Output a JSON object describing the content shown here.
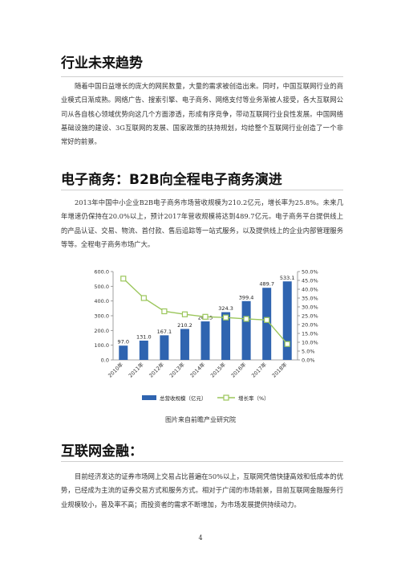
{
  "sections": [
    {
      "heading": "行业未来趋势",
      "paragraph": "随着中国日益增长的庞大的网民数量，大量的需求被创造出来。同时，中国互联网行业的商业模式日渐成熟。网络广告、搜索引擎、电子商务、网络支付等业务渐被人接受，各大互联网公司从各自核心领域优势向这几个方面渗透，形成有序竞争，带动互联网行业良性发展。中国网络基础设施的建设、3G互联网的发展、国家政策的扶持规划，均给整个互联网行业创造了一个非常好的前景。"
    },
    {
      "heading": "电子商务：B2B向全程电子商务演进",
      "paragraph": "2013年中国中小企业B2B电子商务市场营收规模为210.2亿元，增长率为25.8%。未来几年增速仍保持在20.0%以上，预计2017年营收规模将达到489.7亿元。电子商务平台提供线上的产品认证、交易、物流、首付款、售后追踪等一站式服务，以及提供线上的企业内部管理服务等等。全程电子商务市场广大。"
    },
    {
      "heading": "互联网金融：",
      "paragraph": "目前经济发达的证券市场网上交易占比普遍在50%以上，互联网凭借快捷高效和低成本的优势，已经成为主流的证券交易方式和服务方式。相对于广阔的市场前景，目前互联网金融服务行业规模较小，普及率不高；而投资者的需求不断增加，为市场发展提供持续动力。"
    }
  ],
  "caption": "图片来自前瞻产业研究院",
  "page_number": "4",
  "chart_data": {
    "type": "bar+line",
    "categories": [
      "2010年",
      "2011年",
      "2012年",
      "2013年",
      "2014年",
      "2015年",
      "2016年",
      "2017年",
      "2018年"
    ],
    "series": [
      {
        "name": "总营收规模（亿元）",
        "type": "bar",
        "axis": "left",
        "values": [
          97.0,
          131.0,
          167.1,
          210.2,
          261.5,
          324.3,
          399.4,
          489.7,
          533.1
        ],
        "labels": [
          "97.0",
          "131.0",
          "167.1",
          "210.2",
          "261.5",
          "324.3",
          "399.4",
          "489.7",
          "533.1"
        ],
        "color": "#2f64b0"
      },
      {
        "name": "增长率（%）",
        "type": "line",
        "axis": "right",
        "values": [
          46.0,
          35.0,
          27.5,
          25.8,
          24.4,
          24.0,
          23.2,
          22.6,
          9.0
        ],
        "color": "#9bc65b"
      }
    ],
    "yleft": {
      "ticks": [
        "0.0",
        "100.0",
        "200.0",
        "300.0",
        "400.0",
        "500.0",
        "600.0"
      ],
      "range": [
        0,
        600
      ]
    },
    "yright": {
      "ticks": [
        "0.0%",
        "5.0%",
        "10.0%",
        "15.0%",
        "20.0%",
        "25.0%",
        "30.0%",
        "35.0%",
        "40.0%",
        "45.0%",
        "50.0%"
      ],
      "range": [
        0,
        50
      ]
    },
    "legend_position": "bottom",
    "grid": false
  }
}
